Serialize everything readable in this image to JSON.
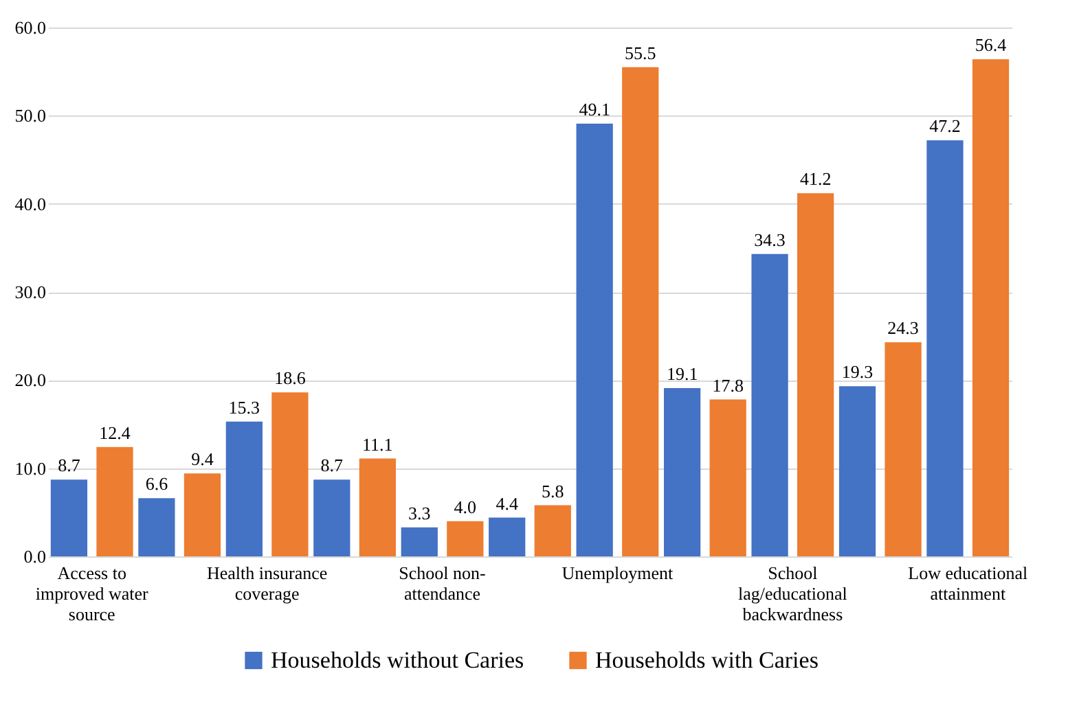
{
  "chart_data": {
    "type": "bar",
    "categories": [
      "Access to improved water source",
      null,
      "Health insurance coverage",
      null,
      "School non-attendance",
      null,
      "Unemployment",
      null,
      "School lag/educational backwardness",
      null,
      "Low educational attainment"
    ],
    "series": [
      {
        "name": "Households without Caries",
        "color": "#4472c4",
        "values": [
          8.7,
          6.6,
          15.3,
          8.7,
          3.3,
          4.4,
          49.1,
          19.1,
          34.3,
          19.3,
          47.2
        ],
        "value_labels": [
          "8.7",
          "6.6",
          "15.3",
          "8.7",
          "3.3",
          "4.4",
          "49.1",
          "19.1",
          "34.3",
          "19.3",
          "47.2"
        ]
      },
      {
        "name": "Households with Caries",
        "color": "#ed7d31",
        "values": [
          12.4,
          9.4,
          18.6,
          11.1,
          4.0,
          5.8,
          55.5,
          17.8,
          41.2,
          24.3,
          56.4
        ],
        "value_labels": [
          "12.4",
          "9.4",
          "18.6",
          "11.1",
          "4.0",
          "5.8",
          "55.5",
          "17.8",
          "41.2",
          "24.3",
          "56.4"
        ]
      }
    ],
    "ylim": [
      0,
      60
    ],
    "yticks": [
      {
        "value": 0,
        "label": "0.0"
      },
      {
        "value": 10,
        "label": "10.0"
      },
      {
        "value": 20,
        "label": "20.0"
      },
      {
        "value": 30,
        "label": "30.0"
      },
      {
        "value": 40,
        "label": "40.0"
      },
      {
        "value": 50,
        "label": "50.0"
      },
      {
        "value": 60,
        "label": "60.0"
      }
    ],
    "grid": "y",
    "legend": "bottom"
  }
}
